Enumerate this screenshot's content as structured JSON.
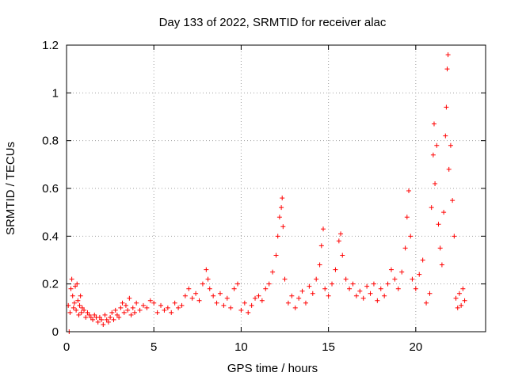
{
  "chart_data": {
    "type": "scatter",
    "title": "Day 133 of 2022, SRMTID for receiver alac",
    "xlabel": "GPS time / hours",
    "ylabel": "SRMTID / TECUs",
    "xlim": [
      0,
      24
    ],
    "ylim": [
      0,
      1.2
    ],
    "xticks": [
      0,
      5,
      10,
      15,
      20
    ],
    "xtick_labels": [
      "0",
      "5",
      "10",
      "15",
      "20"
    ],
    "yticks": [
      0,
      0.2,
      0.4,
      0.6,
      0.8,
      1,
      1.2
    ],
    "ytick_labels": [
      "0",
      "0.2",
      "0.4",
      "0.6",
      "0.8",
      "1",
      "1.2"
    ],
    "grid": true,
    "marker": "+",
    "color": "#ff0000",
    "series": [
      {
        "name": "SRMTID",
        "points": [
          [
            0.1,
            0.11
          ],
          [
            0.15,
            0.0
          ],
          [
            0.2,
            0.08
          ],
          [
            0.25,
            0.18
          ],
          [
            0.3,
            0.22
          ],
          [
            0.35,
            0.15
          ],
          [
            0.4,
            0.1
          ],
          [
            0.45,
            0.12
          ],
          [
            0.5,
            0.19
          ],
          [
            0.55,
            0.09
          ],
          [
            0.6,
            0.2
          ],
          [
            0.65,
            0.13
          ],
          [
            0.7,
            0.07
          ],
          [
            0.75,
            0.11
          ],
          [
            0.8,
            0.15
          ],
          [
            0.85,
            0.08
          ],
          [
            0.9,
            0.1
          ],
          [
            1.0,
            0.09
          ],
          [
            1.1,
            0.06
          ],
          [
            1.2,
            0.08
          ],
          [
            1.3,
            0.07
          ],
          [
            1.4,
            0.06
          ],
          [
            1.5,
            0.05
          ],
          [
            1.6,
            0.07
          ],
          [
            1.7,
            0.06
          ],
          [
            1.8,
            0.04
          ],
          [
            1.9,
            0.06
          ],
          [
            2.0,
            0.05
          ],
          [
            2.1,
            0.03
          ],
          [
            2.2,
            0.07
          ],
          [
            2.3,
            0.05
          ],
          [
            2.4,
            0.04
          ],
          [
            2.5,
            0.06
          ],
          [
            2.6,
            0.08
          ],
          [
            2.7,
            0.05
          ],
          [
            2.8,
            0.09
          ],
          [
            2.9,
            0.07
          ],
          [
            3.0,
            0.06
          ],
          [
            3.1,
            0.1
          ],
          [
            3.2,
            0.12
          ],
          [
            3.3,
            0.08
          ],
          [
            3.4,
            0.11
          ],
          [
            3.5,
            0.09
          ],
          [
            3.6,
            0.14
          ],
          [
            3.7,
            0.07
          ],
          [
            3.8,
            0.1
          ],
          [
            3.9,
            0.08
          ],
          [
            4.0,
            0.12
          ],
          [
            4.2,
            0.09
          ],
          [
            4.4,
            0.11
          ],
          [
            4.6,
            0.1
          ],
          [
            4.8,
            0.13
          ],
          [
            5.0,
            0.12
          ],
          [
            5.2,
            0.08
          ],
          [
            5.4,
            0.11
          ],
          [
            5.6,
            0.09
          ],
          [
            5.8,
            0.1
          ],
          [
            6.0,
            0.08
          ],
          [
            6.2,
            0.12
          ],
          [
            6.4,
            0.1
          ],
          [
            6.6,
            0.11
          ],
          [
            6.8,
            0.15
          ],
          [
            7.0,
            0.18
          ],
          [
            7.2,
            0.14
          ],
          [
            7.4,
            0.16
          ],
          [
            7.6,
            0.13
          ],
          [
            7.8,
            0.2
          ],
          [
            8.0,
            0.26
          ],
          [
            8.1,
            0.22
          ],
          [
            8.2,
            0.18
          ],
          [
            8.4,
            0.15
          ],
          [
            8.6,
            0.12
          ],
          [
            8.8,
            0.16
          ],
          [
            9.0,
            0.11
          ],
          [
            9.2,
            0.14
          ],
          [
            9.4,
            0.1
          ],
          [
            9.6,
            0.18
          ],
          [
            9.8,
            0.2
          ],
          [
            10.0,
            0.09
          ],
          [
            10.2,
            0.12
          ],
          [
            10.4,
            0.08
          ],
          [
            10.6,
            0.11
          ],
          [
            10.8,
            0.14
          ],
          [
            11.0,
            0.15
          ],
          [
            11.2,
            0.13
          ],
          [
            11.4,
            0.18
          ],
          [
            11.6,
            0.2
          ],
          [
            11.8,
            0.25
          ],
          [
            12.0,
            0.32
          ],
          [
            12.1,
            0.4
          ],
          [
            12.2,
            0.48
          ],
          [
            12.3,
            0.52
          ],
          [
            12.35,
            0.56
          ],
          [
            12.4,
            0.44
          ],
          [
            12.5,
            0.22
          ],
          [
            12.7,
            0.12
          ],
          [
            12.9,
            0.15
          ],
          [
            13.1,
            0.1
          ],
          [
            13.3,
            0.14
          ],
          [
            13.5,
            0.17
          ],
          [
            13.7,
            0.12
          ],
          [
            13.9,
            0.19
          ],
          [
            14.1,
            0.16
          ],
          [
            14.3,
            0.22
          ],
          [
            14.5,
            0.28
          ],
          [
            14.6,
            0.36
          ],
          [
            14.7,
            0.43
          ],
          [
            14.8,
            0.18
          ],
          [
            15.0,
            0.15
          ],
          [
            15.2,
            0.2
          ],
          [
            15.4,
            0.26
          ],
          [
            15.6,
            0.38
          ],
          [
            15.7,
            0.41
          ],
          [
            15.8,
            0.32
          ],
          [
            16.0,
            0.22
          ],
          [
            16.2,
            0.18
          ],
          [
            16.4,
            0.2
          ],
          [
            16.6,
            0.15
          ],
          [
            16.8,
            0.17
          ],
          [
            17.0,
            0.14
          ],
          [
            17.2,
            0.19
          ],
          [
            17.4,
            0.16
          ],
          [
            17.6,
            0.2
          ],
          [
            17.8,
            0.13
          ],
          [
            18.0,
            0.18
          ],
          [
            18.2,
            0.15
          ],
          [
            18.4,
            0.2
          ],
          [
            18.6,
            0.26
          ],
          [
            18.8,
            0.22
          ],
          [
            19.0,
            0.18
          ],
          [
            19.2,
            0.25
          ],
          [
            19.4,
            0.35
          ],
          [
            19.5,
            0.48
          ],
          [
            19.6,
            0.59
          ],
          [
            19.7,
            0.4
          ],
          [
            19.8,
            0.22
          ],
          [
            20.0,
            0.18
          ],
          [
            20.2,
            0.24
          ],
          [
            20.4,
            0.3
          ],
          [
            20.6,
            0.12
          ],
          [
            20.8,
            0.16
          ],
          [
            20.9,
            0.52
          ],
          [
            21.0,
            0.74
          ],
          [
            21.05,
            0.87
          ],
          [
            21.1,
            0.62
          ],
          [
            21.2,
            0.78
          ],
          [
            21.3,
            0.45
          ],
          [
            21.4,
            0.35
          ],
          [
            21.5,
            0.28
          ],
          [
            21.6,
            0.5
          ],
          [
            21.7,
            0.82
          ],
          [
            21.75,
            0.94
          ],
          [
            21.8,
            1.1
          ],
          [
            21.85,
            1.16
          ],
          [
            21.9,
            0.68
          ],
          [
            22.0,
            0.78
          ],
          [
            22.1,
            0.55
          ],
          [
            22.2,
            0.4
          ],
          [
            22.3,
            0.14
          ],
          [
            22.4,
            0.1
          ],
          [
            22.5,
            0.16
          ],
          [
            22.6,
            0.11
          ],
          [
            22.7,
            0.18
          ],
          [
            22.8,
            0.13
          ]
        ]
      }
    ]
  }
}
